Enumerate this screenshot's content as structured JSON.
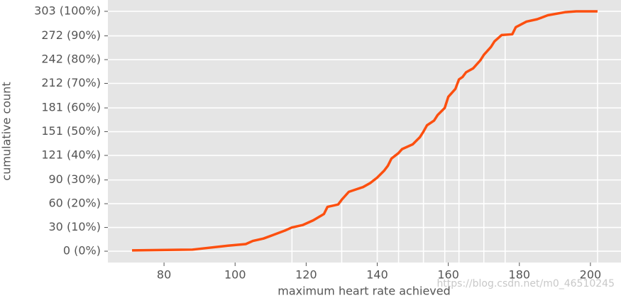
{
  "chart_data": {
    "type": "line",
    "x_label": "maximum heart rate achieved",
    "y_label": "cumulative count",
    "watermark": "https://blog.csdn.net/m0_46510245",
    "x": [
      71,
      88,
      90,
      96,
      98,
      103,
      105,
      108,
      111,
      114,
      116,
      119,
      120,
      122,
      125,
      126,
      129,
      130,
      132,
      134,
      136,
      138,
      140,
      142,
      143,
      144,
      146,
      147,
      150,
      152,
      153,
      154,
      156,
      157,
      159,
      160,
      162,
      163,
      164,
      165,
      167,
      169,
      170,
      172,
      173,
      175,
      178,
      179,
      182,
      185,
      188,
      193,
      196,
      202
    ],
    "series": [
      {
        "name": "cumulative count",
        "color": "#fc4f0f",
        "values": [
          1,
          2,
          3,
          6,
          7,
          9,
          13,
          16,
          21,
          26,
          30,
          33,
          35,
          39,
          47,
          56,
          59,
          65,
          75,
          78,
          81,
          86,
          93,
          102,
          108,
          117,
          124,
          129,
          135,
          144,
          151,
          159,
          165,
          172,
          181,
          195,
          205,
          217,
          220,
          226,
          231,
          241,
          248,
          258,
          265,
          273,
          274,
          283,
          290,
          293,
          298,
          302,
          303,
          303
        ]
      }
    ],
    "quantile_x": [
      116,
      130,
      140,
      146,
      153,
      159,
      163,
      170,
      176,
      202
    ],
    "xlim": [
      64.2,
      208.6
    ],
    "ylim": [
      -14.3,
      317.3
    ],
    "xticks": [
      80,
      100,
      120,
      140,
      160,
      180,
      200
    ],
    "yticks": [
      {
        "value": 0,
        "label": "0 (0%)"
      },
      {
        "value": 30,
        "label": "30 (10%)"
      },
      {
        "value": 60,
        "label": "60 (20%)"
      },
      {
        "value": 90,
        "label": "90 (30%)"
      },
      {
        "value": 121,
        "label": "121 (40%)"
      },
      {
        "value": 151,
        "label": "151 (50%)"
      },
      {
        "value": 181,
        "label": "181 (60%)"
      },
      {
        "value": 212,
        "label": "212 (70%)"
      },
      {
        "value": 242,
        "label": "242 (80%)"
      },
      {
        "value": 272,
        "label": "272 (90%)"
      },
      {
        "value": 303,
        "label": "303 (100%)"
      }
    ],
    "grid": true,
    "background": "#e5e5e5"
  }
}
